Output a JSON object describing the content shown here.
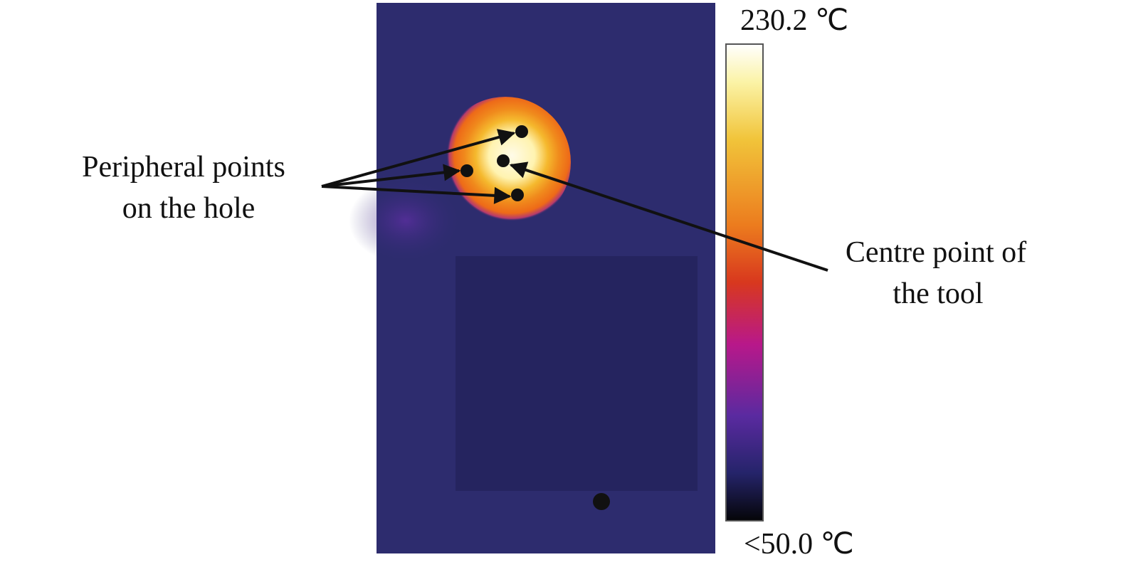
{
  "annotations": {
    "peripheral": [
      "Peripheral points",
      "on the hole"
    ],
    "centre": [
      "Centre point of",
      "the tool"
    ]
  },
  "color_scale": {
    "max": "230.2 ℃",
    "min": "<50.0 ℃"
  }
}
